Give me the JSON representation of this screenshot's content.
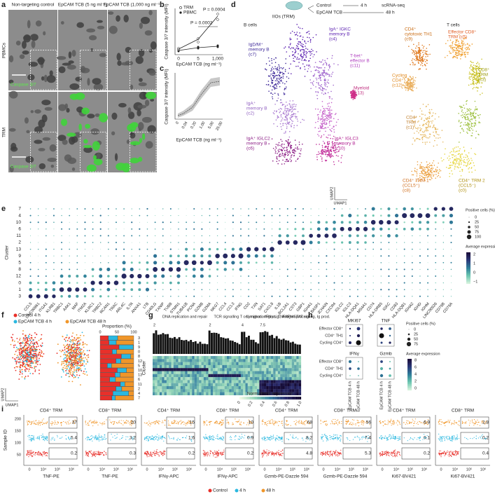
{
  "panels": {
    "a": {
      "letter": "a",
      "columns": [
        "Non-targeting control",
        "EpCAM TCB (5 ng ml⁻¹)",
        "EpCAM TCB (1,000 ng ml⁻¹)"
      ],
      "rows": [
        "PBMCs",
        "TRM"
      ],
      "stain": "Caspase 3/7"
    },
    "b": {
      "letter": "b",
      "legend": [
        "TRM",
        "PBMC"
      ],
      "ylabel": "Caspase 3/7 intensity (MFI)",
      "xlabel": "EpCAM TCB (ng ml⁻¹)",
      "xticks": [
        "0",
        "5",
        "1,000"
      ],
      "pvalues": [
        "P = 0.0004",
        "P = 0.0002"
      ]
    },
    "c": {
      "letter": "c",
      "ylabel": "Caspase 3/7 intensity (MFI)",
      "xlabel": "EpCAM TCB (ng ml⁻¹)",
      "xticks": [
        "0",
        "0.04",
        "0.20",
        "1.00",
        "5.00",
        "25.00"
      ]
    },
    "d": {
      "letter": "d",
      "header": "IIOs (TRM)",
      "conditions": [
        "Control",
        "EpCAM TCB"
      ],
      "times": [
        "4 h",
        "48 h"
      ],
      "method": "scRNA-seq",
      "groups": [
        "B cells",
        "T cells"
      ],
      "axes": [
        "UMAP1",
        "UMAP2"
      ],
      "clusters": [
        {
          "lines": [
            "IgA⁺ IGKC",
            "memory B",
            "(c4)"
          ]
        },
        {
          "lines": [
            "IgD/M⁺",
            "memory B",
            "(c7)"
          ]
        },
        {
          "lines": [
            "T-bet⁺",
            "effector B",
            "(c11)"
          ]
        },
        {
          "lines": [
            "CD4⁺",
            "cytotoxic TH1",
            "(c9)"
          ]
        },
        {
          "lines": [
            "Effector CD8⁺",
            "TRM (c5)"
          ]
        },
        {
          "lines": [
            "Cycling",
            "CD4⁺",
            "(c12)"
          ]
        },
        {
          "lines": [
            "CD8⁺",
            "TRM",
            "(c3)"
          ]
        },
        {
          "lines": [
            "IgA⁺",
            "memory B",
            "(c2)"
          ]
        },
        {
          "lines": [
            "Myeloid",
            "(c13)"
          ]
        },
        {
          "lines": [
            "IgA⁺ IGLC2",
            "memory B",
            "(c6)"
          ]
        },
        {
          "lines": [
            "IgA⁺ IGLC3",
            "memory B",
            "(c10)"
          ]
        },
        {
          "lines": [
            "CD4⁺",
            "TRM",
            "(c1)"
          ]
        },
        {
          "lines": [
            "CD4⁺ TRM 1",
            "(CCL5⁺)",
            "(c8)"
          ]
        },
        {
          "lines": [
            "CD4⁺ TRM 2",
            "(CCL5⁻)",
            "(c0)"
          ]
        }
      ]
    },
    "e": {
      "letter": "e",
      "ylabel": "Cluster",
      "clusters": [
        "7",
        "4",
        "10",
        "6",
        "11",
        "2",
        "13",
        "9",
        "5",
        "8",
        "12",
        "0",
        "1",
        "3"
      ],
      "genes": [
        "CCL5",
        "LINC00861",
        "ITGA1",
        "KLRB1",
        "TRBC1",
        "AAK1",
        "MAF",
        "ITM2A",
        "KLRC1",
        "TRBC2",
        "RCAN1",
        "TRAC",
        "ARL4C",
        "IL7R",
        "ANXA1",
        "LTB",
        "CD40LG",
        "TXNIP",
        "TUBB",
        "STMN1",
        "TUBA1B",
        "PCNA",
        "GZMB",
        "GZMA",
        "NKG7",
        "CCL4",
        "CCL3",
        "IFNG",
        "CD2",
        "TXN",
        "SAT1",
        "CXCL8",
        "IL1B",
        "BCL2A1",
        "CST3",
        "GBP1",
        "IGHA1",
        "BASP1",
        "JCHAIN",
        "CXCR4",
        "IGLC2",
        "IGLC3",
        "HLA-DQA1",
        "MS4A1",
        "CD74",
        "HLA-DRB5",
        "IGKC",
        "CD83",
        "HLA-DQB1",
        "IGHA2",
        "IGHD",
        "IGHM",
        "LINC00926",
        "CD79B",
        "CD79A"
      ],
      "size_title": "Positive cells (%)",
      "sizes": [
        "0",
        "25",
        "50",
        "75",
        "100"
      ],
      "color_title": "Average expression",
      "color_ticks": [
        "2",
        "1",
        "0",
        "−1"
      ]
    },
    "f": {
      "letter": "f",
      "legend": [
        "Control 4 h",
        "EpCAM TCB 4 h",
        "EpCAM TCB 48 h"
      ],
      "proportion_title": "Proportion (%)",
      "ticks": [
        "0",
        "50",
        "100"
      ],
      "ylabel": "Cluster",
      "clusters": [
        "3",
        "1",
        "9",
        "0",
        "8",
        "12",
        "5",
        "10",
        "13",
        "6",
        "11",
        "2",
        "4",
        "7"
      ],
      "axes": [
        "UMAP1",
        "UMAP2"
      ]
    },
    "g": {
      "letter": "g",
      "groups": [
        "DNA replication and repair",
        "TCR signalling T cell migration",
        "Lymphoc. migrat., TNF/IFN/STAT sig.",
        "IFNγ sig., Antigen processing, Ig prod."
      ],
      "bar_ticks": [
        "2",
        "2",
        "4",
        "7.5"
      ],
      "colorbar_title": "Normalized expression",
      "colorbar_ticks": [
        "0",
        "0.2",
        "0.4",
        "0.6",
        "0.8",
        "1.0"
      ]
    },
    "h": {
      "letter": "h",
      "genes": [
        "MKI67",
        "TNF",
        "IFNγ",
        "Gzmb"
      ],
      "rows": [
        "Effector CD8⁺",
        "CD4⁺ TH1",
        "Cycling CD4⁺"
      ],
      "cols": [
        "EpCAM TCB 4 h",
        "EpCAM TCB 48 h"
      ],
      "size_title": "Positive cells (%)",
      "sizes": [
        "0",
        "25",
        "50",
        "75"
      ],
      "color_title": "Average expression",
      "color_ticks": [
        "8",
        "6",
        "4",
        "2",
        "0"
      ]
    },
    "i": {
      "letter": "i",
      "ylabel": "Sample ID",
      "yticks": [
        "200",
        "150",
        "100",
        "50"
      ],
      "xticks": [
        "0",
        "10⁴",
        "10⁵",
        "10⁶"
      ],
      "legend": [
        "Control",
        "4 h",
        "48 h"
      ],
      "panels": [
        {
          "title": "CD4⁺ TRM",
          "xlabel": "TNF-PE",
          "values": [
            "37",
            "5.4",
            "0.2"
          ]
        },
        {
          "title": "CD8⁺ TRM",
          "xlabel": "TNF-PE",
          "values": [
            "20",
            "3.2",
            "0.3"
          ]
        },
        {
          "title": "CD4⁺ TRM",
          "xlabel": "IFNγ-APC",
          "values": [
            "15",
            "1.6",
            "0.2"
          ]
        },
        {
          "title": "CD8⁺ TRM",
          "xlabel": "IFNγ-APC",
          "values": [
            "10",
            "0.9",
            "0.2"
          ]
        },
        {
          "title": "CD4⁺ TRM",
          "xlabel": "Gzmb-PE-Dazzle 594",
          "values": [
            "68",
            "8.2",
            "4.8"
          ]
        },
        {
          "title": "CD8⁺ TRM",
          "xlabel": "Gzmb-PE-Dazzle 594",
          "values": [
            "56",
            "7.4",
            "5.3"
          ]
        },
        {
          "title": "CD4⁺ TRM",
          "xlabel": "Ki67-BV421",
          "values": [
            "6.9",
            "0.1",
            "0.2"
          ]
        },
        {
          "title": "CD8⁺ TRM",
          "xlabel": "Ki67-BV421",
          "values": [
            "2.8",
            "0.2",
            "0.4"
          ]
        }
      ]
    }
  }
}
